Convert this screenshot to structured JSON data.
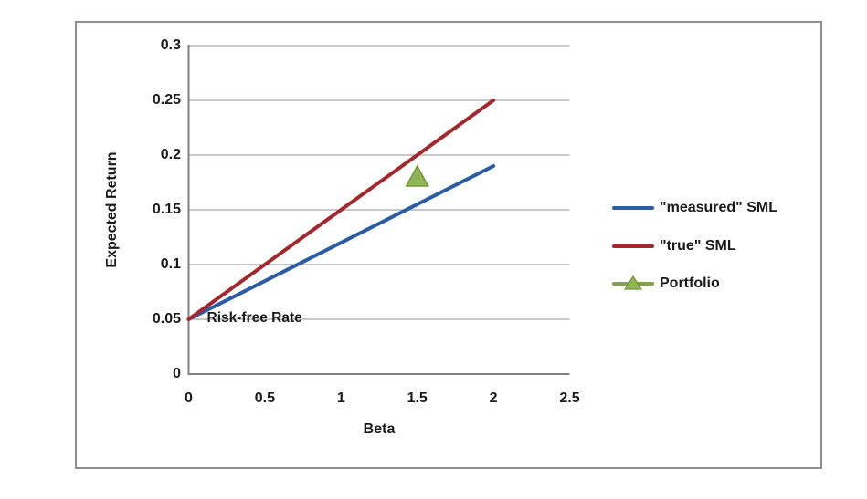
{
  "chart_data": {
    "type": "line",
    "title": "",
    "xlabel": "Beta",
    "ylabel": "Expected Return",
    "xlim": [
      0,
      2.5
    ],
    "ylim": [
      0,
      0.3
    ],
    "x_ticks": [
      0,
      0.5,
      1,
      1.5,
      2,
      2.5
    ],
    "x_tick_labels": [
      "0",
      "0.5",
      "1",
      "1.5",
      "2",
      "2.5"
    ],
    "y_ticks": [
      0,
      0.05,
      0.1,
      0.15,
      0.2,
      0.25,
      0.3
    ],
    "y_tick_labels": [
      "0",
      "0.05",
      "0.1",
      "0.15",
      "0.2",
      "0.25",
      "0.3"
    ],
    "grid": "horizontal",
    "legend_position": "right",
    "series": [
      {
        "name": "\"measured\" SML",
        "type": "line",
        "color": "#2A5DA6",
        "x": [
          0,
          2
        ],
        "y": [
          0.05,
          0.19
        ]
      },
      {
        "name": "\"true\" SML",
        "type": "line",
        "color": "#A3282C",
        "x": [
          0,
          2
        ],
        "y": [
          0.05,
          0.25
        ]
      },
      {
        "name": "Portfolio",
        "type": "scatter",
        "marker": "triangle",
        "color": "#8FB654",
        "border_color": "#75953C",
        "line_color": "#7EA540",
        "x": [
          1.5
        ],
        "y": [
          0.18
        ]
      }
    ],
    "annotations": [
      {
        "text": "Risk-free Rate",
        "x": 0.12,
        "y": 0.05
      }
    ]
  },
  "colors": {
    "gridline": "#A6A6A6",
    "axis_line": "#808080",
    "frame_border": "#8F8F8F",
    "text": "#1a1a1a",
    "background": "#ffffff"
  }
}
